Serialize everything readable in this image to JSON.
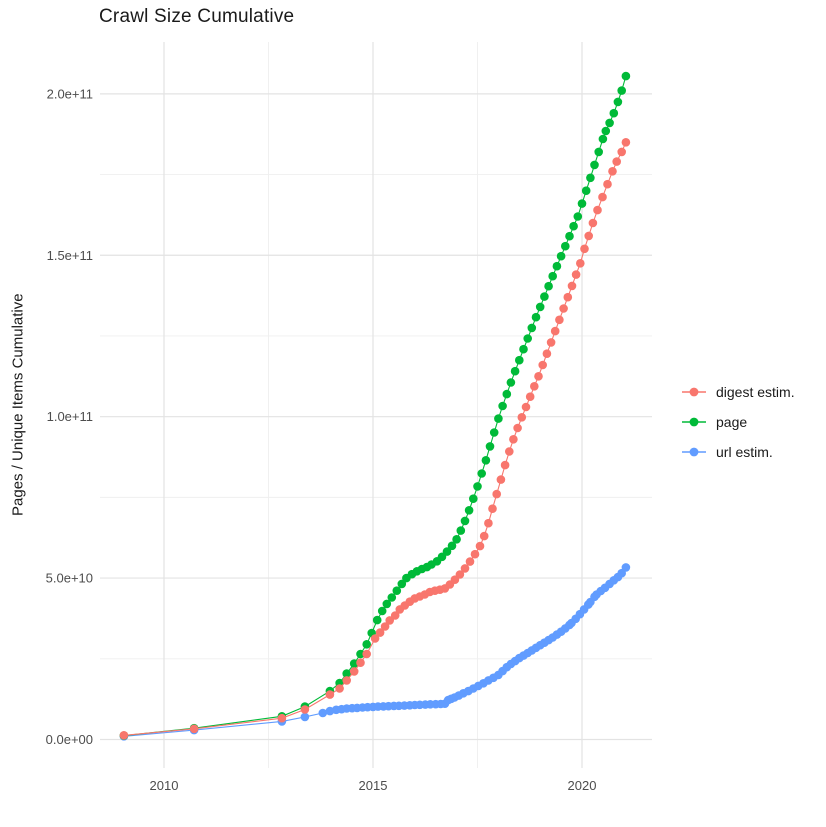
{
  "chart_data": {
    "type": "line",
    "marker": "point",
    "title": "Crawl Size Cumulative",
    "xlabel": "",
    "ylabel": "Pages / Unique Items Cumulative",
    "grid": true,
    "legend_position": "right",
    "value_unit": "1e9 (billions of pages / unique items)",
    "xlim": [
      2008.6,
      2021.65
    ],
    "ylim_e9": [
      -10,
      215
    ],
    "x_ticks": [
      {
        "value": 2010,
        "label": "2010"
      },
      {
        "value": 2015,
        "label": "2015"
      },
      {
        "value": 2020,
        "label": "2020"
      }
    ],
    "x_minor_ticks": [
      2012.5,
      2017.5
    ],
    "y_ticks": [
      {
        "value_e9": 0,
        "label": "0.0e+00"
      },
      {
        "value_e9": 50,
        "label": "5.0e+10"
      },
      {
        "value_e9": 100,
        "label": "1.0e+11"
      },
      {
        "value_e9": 150,
        "label": "1.5e+11"
      },
      {
        "value_e9": 200,
        "label": "2.0e+11"
      }
    ],
    "y_minor_ticks_e9": [
      25,
      75,
      125,
      175
    ],
    "series": [
      {
        "name": "digest estim.",
        "color": "#F8766D",
        "z": 3,
        "points": [
          [
            2009.04,
            1.3
          ],
          [
            2010.72,
            3.3
          ],
          [
            2012.82,
            6.6
          ],
          [
            2013.37,
            9.3
          ],
          [
            2013.97,
            13.9
          ],
          [
            2014.2,
            15.8
          ],
          [
            2014.37,
            18.3
          ],
          [
            2014.55,
            21.1
          ],
          [
            2014.7,
            23.8
          ],
          [
            2014.85,
            26.5
          ],
          [
            2015.05,
            31.3
          ],
          [
            2015.17,
            33.1
          ],
          [
            2015.29,
            35
          ],
          [
            2015.4,
            36.9
          ],
          [
            2015.53,
            38.4
          ],
          [
            2015.64,
            40.3
          ],
          [
            2015.76,
            41.5
          ],
          [
            2015.88,
            42.7
          ],
          [
            2016,
            43.7
          ],
          [
            2016.12,
            44.3
          ],
          [
            2016.24,
            44.9
          ],
          [
            2016.36,
            45.7
          ],
          [
            2016.48,
            46.1
          ],
          [
            2016.6,
            46.4
          ],
          [
            2016.72,
            46.8
          ],
          [
            2016.84,
            48
          ],
          [
            2016.96,
            49.5
          ],
          [
            2017.08,
            51.1
          ],
          [
            2017.2,
            53
          ],
          [
            2017.32,
            55.1
          ],
          [
            2017.44,
            57.4
          ],
          [
            2017.56,
            59.9
          ],
          [
            2017.66,
            63
          ],
          [
            2017.76,
            67
          ],
          [
            2017.86,
            71.5
          ],
          [
            2017.96,
            76
          ],
          [
            2018.06,
            80.5
          ],
          [
            2018.16,
            85
          ],
          [
            2018.26,
            89.2
          ],
          [
            2018.36,
            93
          ],
          [
            2018.46,
            96.5
          ],
          [
            2018.56,
            99.8
          ],
          [
            2018.66,
            103
          ],
          [
            2018.76,
            106.2
          ],
          [
            2018.86,
            109.4
          ],
          [
            2018.96,
            112.5
          ],
          [
            2019.06,
            116
          ],
          [
            2019.16,
            119.5
          ],
          [
            2019.26,
            123
          ],
          [
            2019.36,
            126.5
          ],
          [
            2019.46,
            130
          ],
          [
            2019.56,
            133.5
          ],
          [
            2019.66,
            137
          ],
          [
            2019.76,
            140.5
          ],
          [
            2019.86,
            144
          ],
          [
            2019.96,
            147.5
          ],
          [
            2020.06,
            152
          ],
          [
            2020.16,
            156
          ],
          [
            2020.26,
            160
          ],
          [
            2020.37,
            164
          ],
          [
            2020.49,
            168
          ],
          [
            2020.61,
            172
          ],
          [
            2020.73,
            176
          ],
          [
            2020.83,
            179
          ],
          [
            2020.95,
            182
          ],
          [
            2021.05,
            185
          ]
        ]
      },
      {
        "name": "page",
        "color": "#00BA38",
        "z": 2,
        "points": [
          [
            2009.04,
            1.2
          ],
          [
            2010.72,
            3.5
          ],
          [
            2012.82,
            7.2
          ],
          [
            2013.37,
            10.2
          ],
          [
            2013.97,
            15
          ],
          [
            2014.2,
            17.5
          ],
          [
            2014.37,
            20.4
          ],
          [
            2014.55,
            23.5
          ],
          [
            2014.7,
            26.5
          ],
          [
            2014.85,
            29.5
          ],
          [
            2014.97,
            33
          ],
          [
            2015.1,
            37
          ],
          [
            2015.22,
            39.8
          ],
          [
            2015.33,
            42
          ],
          [
            2015.45,
            44
          ],
          [
            2015.57,
            46.1
          ],
          [
            2015.69,
            48.2
          ],
          [
            2015.8,
            50
          ],
          [
            2015.93,
            51.2
          ],
          [
            2016.05,
            52.1
          ],
          [
            2016.17,
            52.8
          ],
          [
            2016.29,
            53.4
          ],
          [
            2016.4,
            54.2
          ],
          [
            2016.53,
            55.2
          ],
          [
            2016.65,
            56.6
          ],
          [
            2016.77,
            58.2
          ],
          [
            2016.89,
            60
          ],
          [
            2017,
            62
          ],
          [
            2017.1,
            64.7
          ],
          [
            2017.2,
            67.7
          ],
          [
            2017.3,
            71
          ],
          [
            2017.4,
            74.6
          ],
          [
            2017.5,
            78.4
          ],
          [
            2017.6,
            82.4
          ],
          [
            2017.7,
            86.5
          ],
          [
            2017.8,
            90.8
          ],
          [
            2017.9,
            95.1
          ],
          [
            2018,
            99.4
          ],
          [
            2018.1,
            103.3
          ],
          [
            2018.2,
            107
          ],
          [
            2018.3,
            110.6
          ],
          [
            2018.4,
            114.1
          ],
          [
            2018.5,
            117.5
          ],
          [
            2018.6,
            120.9
          ],
          [
            2018.7,
            124.2
          ],
          [
            2018.8,
            127.5
          ],
          [
            2018.9,
            130.8
          ],
          [
            2019,
            134
          ],
          [
            2019.1,
            137.2
          ],
          [
            2019.2,
            140.4
          ],
          [
            2019.3,
            143.5
          ],
          [
            2019.4,
            146.6
          ],
          [
            2019.5,
            149.7
          ],
          [
            2019.6,
            152.8
          ],
          [
            2019.7,
            155.9
          ],
          [
            2019.8,
            159
          ],
          [
            2019.9,
            162
          ],
          [
            2020,
            166
          ],
          [
            2020.1,
            170
          ],
          [
            2020.2,
            174
          ],
          [
            2020.3,
            178
          ],
          [
            2020.4,
            182
          ],
          [
            2020.5,
            186
          ],
          [
            2020.57,
            188.5
          ],
          [
            2020.66,
            191
          ],
          [
            2020.76,
            194
          ],
          [
            2020.86,
            197.5
          ],
          [
            2020.95,
            201
          ],
          [
            2021.05,
            205.5
          ]
        ]
      },
      {
        "name": "url estim.",
        "color": "#619CFF",
        "z": 1,
        "points": [
          [
            2009.04,
            1.0
          ],
          [
            2010.72,
            2.9
          ],
          [
            2012.82,
            5.6
          ],
          [
            2013.37,
            7
          ],
          [
            2013.8,
            8.2
          ],
          [
            2013.97,
            8.8
          ],
          [
            2014.12,
            9.2
          ],
          [
            2014.25,
            9.4
          ],
          [
            2014.37,
            9.6
          ],
          [
            2014.5,
            9.7
          ],
          [
            2014.62,
            9.8
          ],
          [
            2014.75,
            9.9
          ],
          [
            2014.87,
            10
          ],
          [
            2015,
            10.1
          ],
          [
            2015.12,
            10.2
          ],
          [
            2015.25,
            10.25
          ],
          [
            2015.37,
            10.3
          ],
          [
            2015.5,
            10.4
          ],
          [
            2015.62,
            10.45
          ],
          [
            2015.75,
            10.5
          ],
          [
            2015.88,
            10.6
          ],
          [
            2016,
            10.7
          ],
          [
            2016.12,
            10.75
          ],
          [
            2016.25,
            10.8
          ],
          [
            2016.37,
            10.9
          ],
          [
            2016.5,
            10.95
          ],
          [
            2016.62,
            11
          ],
          [
            2016.72,
            11.1
          ],
          [
            2016.8,
            12.2
          ],
          [
            2016.87,
            12.6
          ],
          [
            2016.95,
            13
          ],
          [
            2017.05,
            13.6
          ],
          [
            2017.16,
            14.3
          ],
          [
            2017.28,
            15
          ],
          [
            2017.4,
            15.8
          ],
          [
            2017.52,
            16.6
          ],
          [
            2017.64,
            17.4
          ],
          [
            2017.76,
            18.3
          ],
          [
            2017.88,
            19.1
          ],
          [
            2018,
            20
          ],
          [
            2018.1,
            21.2
          ],
          [
            2018.2,
            22.4
          ],
          [
            2018.3,
            23.4
          ],
          [
            2018.4,
            24.3
          ],
          [
            2018.5,
            25.2
          ],
          [
            2018.6,
            26
          ],
          [
            2018.7,
            26.8
          ],
          [
            2018.8,
            27.6
          ],
          [
            2018.9,
            28.4
          ],
          [
            2019,
            29.2
          ],
          [
            2019.1,
            30
          ],
          [
            2019.2,
            30.8
          ],
          [
            2019.3,
            31.6
          ],
          [
            2019.4,
            32.5
          ],
          [
            2019.5,
            33.4
          ],
          [
            2019.6,
            34.4
          ],
          [
            2019.7,
            35.5
          ],
          [
            2019.75,
            36.1
          ],
          [
            2019.85,
            37.4
          ],
          [
            2019.95,
            38.8
          ],
          [
            2020.05,
            40.3
          ],
          [
            2020.15,
            41.8
          ],
          [
            2020.2,
            42.6
          ],
          [
            2020.3,
            44.2
          ],
          [
            2020.35,
            44.9
          ],
          [
            2020.45,
            46
          ],
          [
            2020.55,
            47
          ],
          [
            2020.66,
            48.2
          ],
          [
            2020.76,
            49.3
          ],
          [
            2020.86,
            50.3
          ],
          [
            2020.95,
            51.5
          ],
          [
            2021.05,
            53.3
          ]
        ]
      }
    ]
  }
}
